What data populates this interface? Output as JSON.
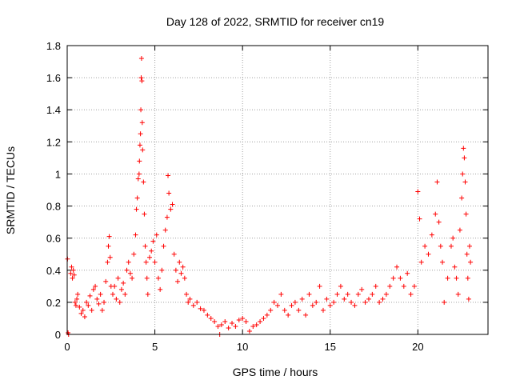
{
  "chart_data": {
    "type": "scatter",
    "title": "Day 128 of 2022, SRMTID for receiver cn19",
    "xlabel": "GPS time / hours",
    "ylabel": "SRMTID / TECUs",
    "xlim": [
      0,
      24
    ],
    "ylim": [
      0,
      1.8
    ],
    "x_ticks": [
      0,
      5,
      10,
      15,
      20
    ],
    "x_tick_labels": [
      "0",
      "5",
      "10",
      "15",
      "20"
    ],
    "y_ticks": [
      0,
      0.2,
      0.4,
      0.6,
      0.8,
      1.0,
      1.2,
      1.4,
      1.6,
      1.8
    ],
    "y_tick_labels": [
      "0",
      "0.2",
      "0.4",
      "0.6",
      "0.8",
      "1",
      "1.2",
      "1.4",
      "1.6",
      "1.8"
    ],
    "grid": true,
    "marker": "+",
    "color": "#ff0000",
    "series": [
      {
        "name": "SRMTID",
        "points": [
          [
            0.02,
            0.47
          ],
          [
            0.05,
            0.01
          ],
          [
            0.08,
            0.0
          ],
          [
            0.2,
            0.38
          ],
          [
            0.25,
            0.42
          ],
          [
            0.3,
            0.35
          ],
          [
            0.35,
            0.4
          ],
          [
            0.4,
            0.37
          ],
          [
            0.45,
            0.2
          ],
          [
            0.5,
            0.18
          ],
          [
            0.55,
            0.22
          ],
          [
            0.6,
            0.25
          ],
          [
            0.7,
            0.17
          ],
          [
            0.8,
            0.13
          ],
          [
            0.9,
            0.15
          ],
          [
            1.0,
            0.11
          ],
          [
            1.1,
            0.2
          ],
          [
            1.2,
            0.18
          ],
          [
            1.3,
            0.24
          ],
          [
            1.4,
            0.15
          ],
          [
            1.5,
            0.28
          ],
          [
            1.6,
            0.3
          ],
          [
            1.7,
            0.22
          ],
          [
            1.8,
            0.19
          ],
          [
            1.9,
            0.25
          ],
          [
            2.0,
            0.15
          ],
          [
            2.1,
            0.2
          ],
          [
            2.2,
            0.33
          ],
          [
            2.3,
            0.45
          ],
          [
            2.35,
            0.55
          ],
          [
            2.4,
            0.61
          ],
          [
            2.45,
            0.48
          ],
          [
            2.5,
            0.3
          ],
          [
            2.6,
            0.25
          ],
          [
            2.7,
            0.3
          ],
          [
            2.8,
            0.22
          ],
          [
            2.9,
            0.35
          ],
          [
            3.0,
            0.2
          ],
          [
            3.1,
            0.28
          ],
          [
            3.2,
            0.32
          ],
          [
            3.3,
            0.25
          ],
          [
            3.4,
            0.4
          ],
          [
            3.5,
            0.45
          ],
          [
            3.6,
            0.38
          ],
          [
            3.7,
            0.35
          ],
          [
            3.8,
            0.5
          ],
          [
            3.9,
            0.62
          ],
          [
            3.95,
            0.78
          ],
          [
            4.0,
            0.85
          ],
          [
            4.05,
            0.97
          ],
          [
            4.1,
            1.0
          ],
          [
            4.12,
            1.08
          ],
          [
            4.15,
            1.18
          ],
          [
            4.18,
            1.25
          ],
          [
            4.2,
            1.4
          ],
          [
            4.22,
            1.6
          ],
          [
            4.24,
            1.72
          ],
          [
            4.26,
            1.58
          ],
          [
            4.28,
            1.32
          ],
          [
            4.3,
            1.15
          ],
          [
            4.35,
            0.95
          ],
          [
            4.4,
            0.75
          ],
          [
            4.45,
            0.55
          ],
          [
            4.5,
            0.45
          ],
          [
            4.55,
            0.35
          ],
          [
            4.6,
            0.25
          ],
          [
            4.7,
            0.48
          ],
          [
            4.8,
            0.52
          ],
          [
            4.9,
            0.58
          ],
          [
            5.0,
            0.45
          ],
          [
            5.1,
            0.62
          ],
          [
            5.2,
            0.35
          ],
          [
            5.3,
            0.28
          ],
          [
            5.4,
            0.4
          ],
          [
            5.5,
            0.55
          ],
          [
            5.6,
            0.65
          ],
          [
            5.7,
            0.73
          ],
          [
            5.75,
            0.99
          ],
          [
            5.8,
            0.88
          ],
          [
            5.9,
            0.78
          ],
          [
            6.0,
            0.81
          ],
          [
            6.1,
            0.5
          ],
          [
            6.2,
            0.4
          ],
          [
            6.3,
            0.33
          ],
          [
            6.4,
            0.45
          ],
          [
            6.5,
            0.38
          ],
          [
            6.6,
            0.42
          ],
          [
            6.7,
            0.35
          ],
          [
            6.8,
            0.25
          ],
          [
            6.9,
            0.2
          ],
          [
            7.0,
            0.22
          ],
          [
            7.2,
            0.18
          ],
          [
            7.4,
            0.2
          ],
          [
            7.6,
            0.16
          ],
          [
            7.8,
            0.15
          ],
          [
            8.0,
            0.12
          ],
          [
            8.2,
            0.1
          ],
          [
            8.4,
            0.08
          ],
          [
            8.6,
            0.05
          ],
          [
            8.7,
            0.0
          ],
          [
            8.8,
            0.06
          ],
          [
            9.0,
            0.08
          ],
          [
            9.2,
            0.04
          ],
          [
            9.4,
            0.07
          ],
          [
            9.6,
            0.05
          ],
          [
            9.8,
            0.09
          ],
          [
            10.0,
            0.1
          ],
          [
            10.2,
            0.08
          ],
          [
            10.4,
            0.02
          ],
          [
            10.6,
            0.05
          ],
          [
            10.8,
            0.06
          ],
          [
            11.0,
            0.08
          ],
          [
            11.2,
            0.1
          ],
          [
            11.4,
            0.12
          ],
          [
            11.6,
            0.15
          ],
          [
            11.8,
            0.2
          ],
          [
            12.0,
            0.18
          ],
          [
            12.2,
            0.25
          ],
          [
            12.4,
            0.15
          ],
          [
            12.6,
            0.12
          ],
          [
            12.8,
            0.18
          ],
          [
            13.0,
            0.2
          ],
          [
            13.2,
            0.15
          ],
          [
            13.4,
            0.22
          ],
          [
            13.6,
            0.12
          ],
          [
            13.8,
            0.25
          ],
          [
            14.0,
            0.18
          ],
          [
            14.2,
            0.2
          ],
          [
            14.4,
            0.3
          ],
          [
            14.6,
            0.15
          ],
          [
            14.8,
            0.22
          ],
          [
            15.0,
            0.18
          ],
          [
            15.2,
            0.2
          ],
          [
            15.4,
            0.25
          ],
          [
            15.6,
            0.3
          ],
          [
            15.8,
            0.22
          ],
          [
            16.0,
            0.25
          ],
          [
            16.2,
            0.2
          ],
          [
            16.4,
            0.18
          ],
          [
            16.6,
            0.25
          ],
          [
            16.8,
            0.28
          ],
          [
            17.0,
            0.2
          ],
          [
            17.2,
            0.22
          ],
          [
            17.4,
            0.25
          ],
          [
            17.6,
            0.3
          ],
          [
            17.8,
            0.2
          ],
          [
            18.0,
            0.22
          ],
          [
            18.2,
            0.25
          ],
          [
            18.4,
            0.3
          ],
          [
            18.6,
            0.35
          ],
          [
            18.8,
            0.42
          ],
          [
            19.0,
            0.35
          ],
          [
            19.2,
            0.3
          ],
          [
            19.4,
            0.38
          ],
          [
            19.6,
            0.25
          ],
          [
            19.8,
            0.3
          ],
          [
            20.0,
            0.89
          ],
          [
            20.1,
            0.72
          ],
          [
            20.2,
            0.45
          ],
          [
            20.4,
            0.55
          ],
          [
            20.6,
            0.5
          ],
          [
            20.8,
            0.62
          ],
          [
            21.0,
            0.75
          ],
          [
            21.1,
            0.95
          ],
          [
            21.2,
            0.7
          ],
          [
            21.3,
            0.55
          ],
          [
            21.4,
            0.45
          ],
          [
            21.5,
            0.2
          ],
          [
            21.7,
            0.35
          ],
          [
            21.9,
            0.55
          ],
          [
            22.0,
            0.6
          ],
          [
            22.1,
            0.42
          ],
          [
            22.2,
            0.35
          ],
          [
            22.3,
            0.25
          ],
          [
            22.4,
            0.65
          ],
          [
            22.5,
            0.85
          ],
          [
            22.55,
            1.0
          ],
          [
            22.6,
            1.16
          ],
          [
            22.65,
            1.1
          ],
          [
            22.7,
            0.95
          ],
          [
            22.75,
            0.75
          ],
          [
            22.8,
            0.5
          ],
          [
            22.85,
            0.35
          ],
          [
            22.9,
            0.22
          ],
          [
            22.95,
            0.55
          ],
          [
            23.0,
            0.45
          ]
        ]
      }
    ]
  }
}
